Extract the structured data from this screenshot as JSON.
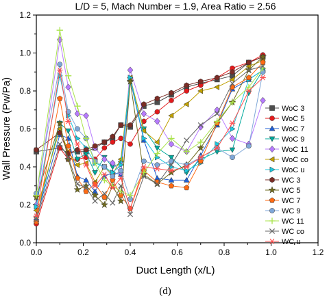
{
  "chart_data": {
    "type": "line",
    "title": "L/D = 5, Mach Number = 1.9, Area Ratio = 2.56",
    "xlabel": "Duct Length (x/L)",
    "ylabel": "Wall Pressure (Pw/Pa)",
    "caption": "(d)",
    "xlim": [
      0.0,
      1.2
    ],
    "ylim": [
      0.0,
      1.2
    ],
    "xticks": [
      "0.0",
      "0.2",
      "0.4",
      "0.6",
      "0.8",
      "1.0",
      "1.2"
    ],
    "yticks": [
      "0.0",
      "0.2",
      "0.4",
      "0.6",
      "0.8",
      "1.0",
      "1.2"
    ],
    "grid": false,
    "legend_position": "right",
    "x": [
      0.0,
      0.1,
      0.136,
      0.175,
      0.212,
      0.25,
      0.29,
      0.325,
      0.36,
      0.4,
      0.458,
      0.515,
      0.575,
      0.64,
      0.7,
      0.77,
      0.835,
      0.905,
      0.965
    ],
    "series": [
      {
        "name": "WoC 3",
        "color": "#4d4d4d",
        "marker": "square",
        "values": [
          0.48,
          0.5,
          0.47,
          0.48,
          0.48,
          0.5,
          0.53,
          0.55,
          0.62,
          0.61,
          0.72,
          0.74,
          0.78,
          0.82,
          0.84,
          0.86,
          0.88,
          0.95,
          0.98
        ]
      },
      {
        "name": "WoC 5",
        "color": "#e31a1c",
        "marker": "circle",
        "values": [
          0.1,
          0.5,
          0.44,
          0.44,
          0.45,
          0.44,
          0.5,
          0.53,
          0.55,
          0.52,
          0.64,
          0.69,
          0.75,
          0.8,
          0.83,
          0.87,
          0.92,
          0.95,
          0.99
        ]
      },
      {
        "name": "WoC 7",
        "color": "#1f5fd6",
        "marker": "triangle-up",
        "values": [
          0.13,
          0.57,
          0.55,
          0.35,
          0.33,
          0.27,
          0.35,
          0.37,
          0.36,
          0.86,
          0.54,
          0.34,
          0.33,
          0.33,
          0.46,
          0.62,
          0.81,
          0.86,
          0.91
        ]
      },
      {
        "name": "WoC 9",
        "color": "#00a99d",
        "marker": "triangle-down",
        "values": [
          0.13,
          0.63,
          0.59,
          0.44,
          0.47,
          0.37,
          0.45,
          0.4,
          0.42,
          0.86,
          0.6,
          0.5,
          0.45,
          0.37,
          0.44,
          0.48,
          0.49,
          0.79,
          0.91
        ]
      },
      {
        "name": "WoC 11",
        "color": "#b77bff",
        "marker": "diamond",
        "values": [
          0.2,
          1.07,
          0.82,
          0.68,
          0.67,
          0.5,
          0.44,
          0.42,
          0.37,
          0.91,
          0.68,
          0.64,
          0.52,
          0.48,
          0.61,
          0.7,
          0.55,
          0.52,
          0.75
        ]
      },
      {
        "name": "WoC co",
        "color": "#c0a000",
        "marker": "triangle-left",
        "values": [
          0.17,
          0.6,
          0.48,
          0.41,
          0.42,
          0.32,
          0.4,
          0.36,
          0.44,
          0.87,
          0.59,
          0.53,
          0.67,
          0.73,
          0.8,
          0.82,
          0.86,
          0.93,
          0.96
        ]
      },
      {
        "name": "WoC u",
        "color": "#1ec6dc",
        "marker": "triangle-right",
        "values": [
          0.19,
          0.88,
          0.67,
          0.55,
          0.5,
          0.42,
          0.4,
          0.37,
          0.41,
          0.87,
          0.55,
          0.45,
          0.4,
          0.38,
          0.42,
          0.52,
          0.6,
          0.86,
          0.91
        ]
      },
      {
        "name": "WC 3",
        "color": "#7b2d26",
        "marker": "hexagon",
        "values": [
          0.49,
          0.58,
          0.47,
          0.49,
          0.49,
          0.51,
          0.53,
          0.56,
          0.62,
          0.62,
          0.73,
          0.76,
          0.79,
          0.83,
          0.85,
          0.87,
          0.9,
          0.95,
          0.98
        ]
      },
      {
        "name": "WC 5",
        "color": "#6e6a1e",
        "marker": "star",
        "values": [
          0.24,
          0.63,
          0.44,
          0.28,
          0.3,
          0.25,
          0.2,
          0.3,
          0.22,
          0.85,
          0.36,
          0.31,
          0.37,
          0.41,
          0.5,
          0.63,
          0.74,
          0.91,
          0.98
        ]
      },
      {
        "name": "WC 7",
        "color": "#ff6a13",
        "marker": "pentagon",
        "values": [
          0.11,
          0.76,
          0.51,
          0.34,
          0.27,
          0.31,
          0.24,
          0.33,
          0.25,
          0.18,
          0.38,
          0.32,
          0.3,
          0.29,
          0.43,
          0.63,
          0.82,
          0.87,
          0.95
        ]
      },
      {
        "name": "WC 9",
        "color": "#7fa7d8",
        "marker": "circle",
        "values": [
          0.26,
          0.94,
          0.69,
          0.6,
          0.55,
          0.43,
          0.4,
          0.35,
          0.38,
          0.23,
          0.43,
          0.41,
          0.43,
          0.41,
          0.45,
          0.5,
          0.45,
          0.51,
          0.9
        ]
      },
      {
        "name": "WC 11",
        "color": "#a9e34b",
        "marker": "plus",
        "values": [
          0.25,
          1.12,
          0.88,
          0.72,
          0.55,
          0.42,
          0.33,
          0.3,
          0.27,
          0.25,
          0.37,
          0.47,
          0.55,
          0.48,
          0.53,
          0.64,
          0.74,
          0.82,
          0.92
        ]
      },
      {
        "name": "WC co",
        "color": "#666666",
        "marker": "x",
        "values": [
          0.12,
          0.52,
          0.45,
          0.31,
          0.29,
          0.22,
          0.26,
          0.21,
          0.3,
          0.15,
          0.35,
          0.31,
          0.41,
          0.54,
          0.62,
          0.68,
          0.84,
          0.91,
          0.93
        ]
      },
      {
        "name": "WC u",
        "color": "#ff4d4d",
        "marker": "asterisk",
        "values": [
          0.14,
          0.91,
          0.64,
          0.52,
          0.41,
          0.3,
          0.36,
          0.29,
          0.34,
          0.18,
          0.4,
          0.39,
          0.38,
          0.4,
          0.45,
          0.5,
          0.63,
          0.8,
          0.87
        ]
      }
    ]
  }
}
